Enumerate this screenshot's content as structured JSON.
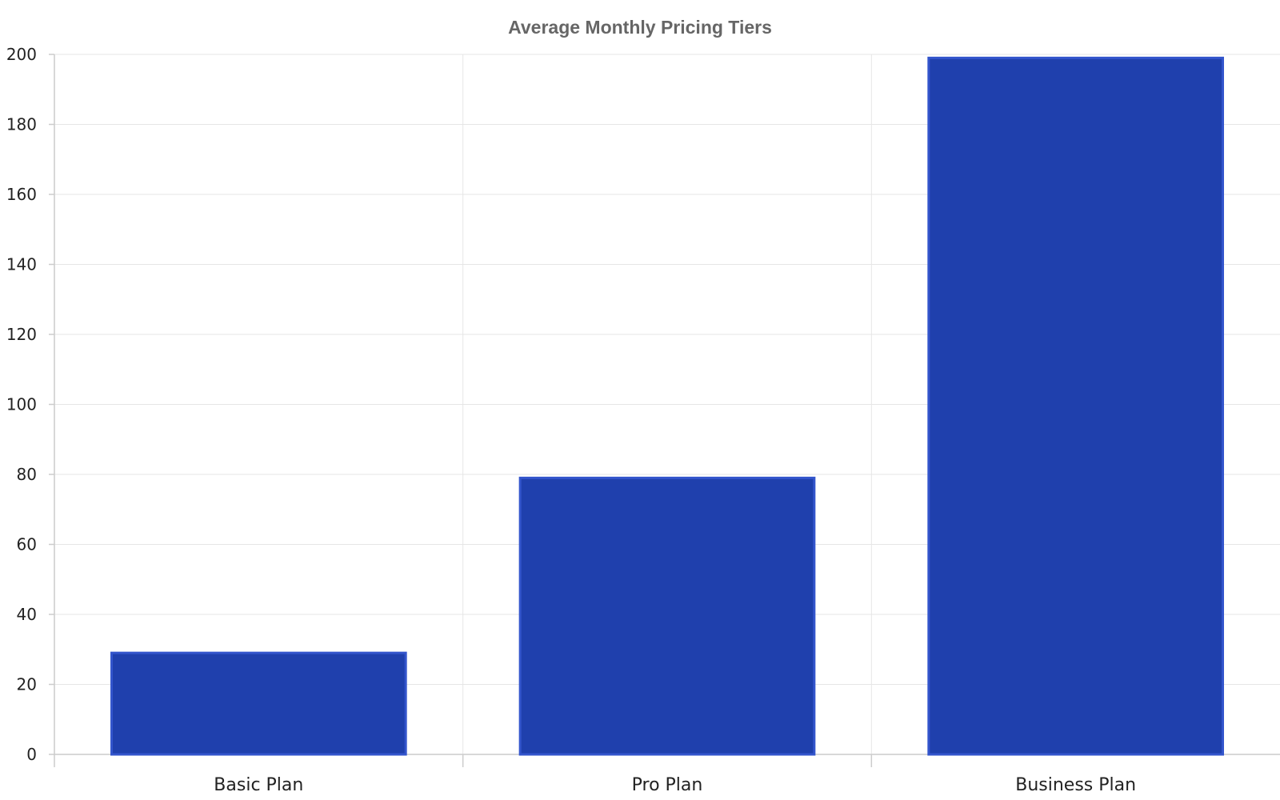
{
  "chart_data": {
    "type": "bar",
    "title": "Average Monthly Pricing Tiers",
    "xlabel": "",
    "ylabel": "",
    "categories": [
      "Basic Plan",
      "Pro Plan",
      "Business Plan"
    ],
    "values": [
      29,
      79,
      199
    ],
    "ylim": [
      0,
      200
    ],
    "yticks": [
      0,
      20,
      40,
      60,
      80,
      100,
      120,
      140,
      160,
      180,
      200
    ],
    "grid": true,
    "legend": "none",
    "colors": {
      "bar_fill": "#1f40ad",
      "bar_stroke": "#3355cc",
      "grid": "#e6e6e6",
      "axis": "#cccccc",
      "title": "#666666",
      "text": "#222222"
    }
  }
}
